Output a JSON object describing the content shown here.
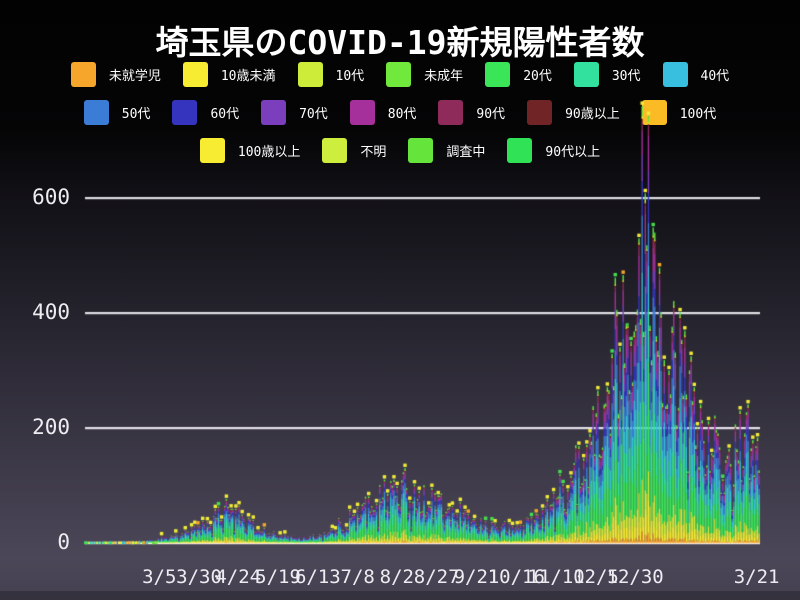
{
  "title": "埼玉県のCOVID-19新規陽性者数",
  "legend": {
    "rows": [
      [
        {
          "label": "未就学児",
          "color": "#f6a72b"
        },
        {
          "label": "10歳未満",
          "color": "#f7ec31"
        },
        {
          "label": "10代",
          "color": "#cdec3a"
        },
        {
          "label": "未成年",
          "color": "#71e93c"
        },
        {
          "label": "20代",
          "color": "#3be558"
        },
        {
          "label": "30代",
          "color": "#31e19d"
        },
        {
          "label": "40代",
          "color": "#38bfdf"
        }
      ],
      [
        {
          "label": "50代",
          "color": "#3b7dd6"
        },
        {
          "label": "60代",
          "color": "#3434be"
        },
        {
          "label": "70代",
          "color": "#7b3fbe"
        },
        {
          "label": "80代",
          "color": "#a5309b"
        },
        {
          "label": "90代",
          "color": "#8e2b5a"
        },
        {
          "label": "90歳以上",
          "color": "#702426"
        },
        {
          "label": "100代",
          "color": "#fbbb24"
        }
      ],
      [
        {
          "label": "100歳以上",
          "color": "#f7ec31"
        },
        {
          "label": "不明",
          "color": "#cdee3c"
        },
        {
          "label": "調査中",
          "color": "#65e53c"
        },
        {
          "label": "90代以上",
          "color": "#30e356"
        }
      ]
    ]
  },
  "chart_data": {
    "type": "bar",
    "subtype": "stacked-daily-bars",
    "title": "埼玉県のCOVID-19新規陽性者数",
    "xlabel": "",
    "ylabel": "",
    "ylim": [
      0,
      640
    ],
    "yticks": [
      0,
      200,
      400,
      600
    ],
    "grid": "horizontal-white-lines",
    "legend_position": "top",
    "n_days": 427,
    "x_ticks": [
      {
        "label": "3/5",
        "pos": 0.11
      },
      {
        "label": "3/30",
        "pos": 0.169
      },
      {
        "label": "4/24",
        "pos": 0.227
      },
      {
        "label": "5/19",
        "pos": 0.286
      },
      {
        "label": "6/13",
        "pos": 0.345
      },
      {
        "label": "7/8",
        "pos": 0.404
      },
      {
        "label": "8/2",
        "pos": 0.462
      },
      {
        "label": "8/27",
        "pos": 0.521
      },
      {
        "label": "9/21",
        "pos": 0.58
      },
      {
        "label": "10/16",
        "pos": 0.639
      },
      {
        "label": "11/10",
        "pos": 0.698
      },
      {
        "label": "12/5",
        "pos": 0.757
      },
      {
        "label": "12/30",
        "pos": 0.815
      },
      {
        "label": "3/21",
        "pos": 0.995
      }
    ],
    "series": [
      {
        "name": "未就学児",
        "color": "#f6a72b",
        "w_early": 0.025,
        "w_late": 0.022
      },
      {
        "name": "10歳未満",
        "color": "#f7ec31",
        "w_early": 0.055,
        "w_late": 0.055
      },
      {
        "name": "10代",
        "color": "#cdec3a",
        "w_early": 0.075,
        "w_late": 0.07
      },
      {
        "name": "未成年",
        "color": "#71e93c",
        "w_early": 0.004,
        "w_late": 0.002
      },
      {
        "name": "20代",
        "color": "#3be558",
        "w_early": 0.235,
        "w_late": 0.185
      },
      {
        "name": "30代",
        "color": "#31e19d",
        "w_early": 0.165,
        "w_late": 0.15
      },
      {
        "name": "40代",
        "color": "#38bfdf",
        "w_early": 0.13,
        "w_late": 0.155
      },
      {
        "name": "50代",
        "color": "#3b7dd6",
        "w_early": 0.1,
        "w_late": 0.115
      },
      {
        "name": "60代",
        "color": "#3434be",
        "w_early": 0.06,
        "w_late": 0.07
      },
      {
        "name": "70代",
        "color": "#7b3fbe",
        "w_early": 0.045,
        "w_late": 0.055
      },
      {
        "name": "80代",
        "color": "#a5309b",
        "w_early": 0.04,
        "w_late": 0.06
      },
      {
        "name": "90代",
        "color": "#8e2b5a",
        "w_early": 0.024,
        "w_late": 0.028
      },
      {
        "name": "90歳以上",
        "color": "#702426",
        "w_early": 0.006,
        "w_late": 0.007
      },
      {
        "name": "100代",
        "color": "#fbbb24",
        "w_early": 0.001,
        "w_late": 0.001
      },
      {
        "name": "100歳以上",
        "color": "#f7ec31",
        "w_early": 0.001,
        "w_late": 0.001
      },
      {
        "name": "不明",
        "color": "#cdee3c",
        "w_early": 0.005,
        "w_late": 0.005
      },
      {
        "name": "調査中",
        "color": "#65e53c",
        "w_early": 0.018,
        "w_late": 0.016
      },
      {
        "name": "90代以上",
        "color": "#30e356",
        "w_early": 0.003,
        "w_late": 0.003
      }
    ],
    "totals_anchors": [
      [
        0,
        1
      ],
      [
        6,
        1
      ],
      [
        12,
        2
      ],
      [
        18,
        2
      ],
      [
        24,
        2
      ],
      [
        30,
        3
      ],
      [
        36,
        3
      ],
      [
        42,
        4
      ],
      [
        47,
        8
      ],
      [
        54,
        11
      ],
      [
        60,
        14
      ],
      [
        66,
        18
      ],
      [
        72,
        26
      ],
      [
        78,
        34
      ],
      [
        84,
        46
      ],
      [
        88,
        58
      ],
      [
        92,
        50
      ],
      [
        96,
        44
      ],
      [
        102,
        34
      ],
      [
        108,
        28
      ],
      [
        114,
        20
      ],
      [
        120,
        14
      ],
      [
        126,
        11
      ],
      [
        132,
        9
      ],
      [
        138,
        9
      ],
      [
        145,
        11
      ],
      [
        150,
        15
      ],
      [
        155,
        20
      ],
      [
        160,
        28
      ],
      [
        165,
        36
      ],
      [
        170,
        46
      ],
      [
        175,
        58
      ],
      [
        180,
        66
      ],
      [
        185,
        74
      ],
      [
        190,
        84
      ],
      [
        195,
        92
      ],
      [
        199,
        98
      ],
      [
        203,
        84
      ],
      [
        207,
        76
      ],
      [
        211,
        88
      ],
      [
        215,
        70
      ],
      [
        220,
        76
      ],
      [
        225,
        62
      ],
      [
        230,
        54
      ],
      [
        235,
        48
      ],
      [
        240,
        42
      ],
      [
        245,
        36
      ],
      [
        250,
        31
      ],
      [
        255,
        30
      ],
      [
        260,
        28
      ],
      [
        265,
        26
      ],
      [
        270,
        24
      ],
      [
        275,
        28
      ],
      [
        280,
        34
      ],
      [
        285,
        42
      ],
      [
        290,
        52
      ],
      [
        295,
        62
      ],
      [
        300,
        78
      ],
      [
        305,
        100
      ],
      [
        310,
        124
      ],
      [
        315,
        152
      ],
      [
        320,
        182
      ],
      [
        325,
        210
      ],
      [
        330,
        248
      ],
      [
        334,
        290
      ],
      [
        338,
        336
      ],
      [
        342,
        392
      ],
      [
        346,
        452
      ],
      [
        350,
        530
      ],
      [
        354,
        608
      ],
      [
        357,
        470
      ],
      [
        360,
        540
      ],
      [
        363,
        430
      ],
      [
        366,
        370
      ],
      [
        370,
        320
      ],
      [
        374,
        300
      ],
      [
        378,
        285
      ],
      [
        382,
        262
      ],
      [
        386,
        235
      ],
      [
        390,
        200
      ],
      [
        394,
        178
      ],
      [
        398,
        152
      ],
      [
        402,
        138
      ],
      [
        406,
        128
      ],
      [
        410,
        142
      ],
      [
        414,
        168
      ],
      [
        418,
        182
      ],
      [
        421,
        148
      ],
      [
        424,
        165
      ],
      [
        426,
        172
      ]
    ],
    "exact_days": {
      "350": 530,
      "354": 608,
      "360": 540
    },
    "peak_value": 608,
    "marker_colors": {
      "primary": "#f2ec39",
      "alt_green": "#44e04e",
      "alt_orange": "#f6a72b"
    },
    "baseline_dots": [
      [
        0,
        "#3be558"
      ],
      [
        16,
        "#31e19d"
      ],
      [
        24,
        "#38bfdf"
      ],
      [
        30,
        "#f7ec31"
      ],
      [
        37,
        "#f6a72b"
      ],
      [
        43,
        "#65e53c"
      ]
    ]
  }
}
